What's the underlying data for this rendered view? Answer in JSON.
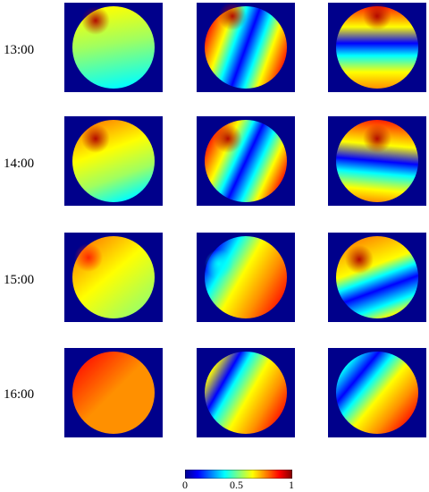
{
  "rows": [
    {
      "time": "13:00"
    },
    {
      "time": "14:00"
    },
    {
      "time": "15:00"
    },
    {
      "time": "16:00"
    }
  ],
  "columns": 3,
  "colorbar": {
    "ticks": [
      "0",
      "0.5",
      "1"
    ],
    "colormap": "jet",
    "range": [
      0,
      1
    ]
  },
  "colors": {
    "background": "#00008b",
    "jet_stops": [
      "#00008f",
      "#0000ff",
      "#00ffff",
      "#7fff7f",
      "#ffff00",
      "#ff0000",
      "#800000"
    ]
  }
}
